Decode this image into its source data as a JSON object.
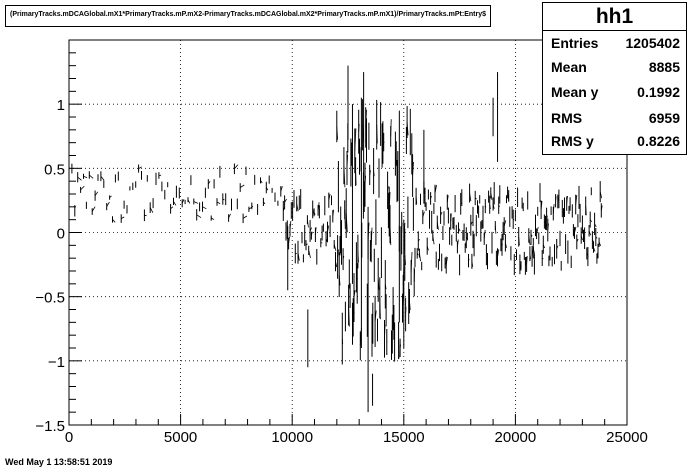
{
  "title_box": {
    "text": "(PrimaryTracks.mDCAGlobal.mX1*PrimaryTracks.mP.mX2-PrimaryTracks.mDCAGlobal.mX2*PrimaryTracks.mP.mX1)/PrimaryTracks.mPt:Entry$"
  },
  "stats": {
    "name": "hh1",
    "rows": [
      {
        "label": "Entries",
        "value": "1205402"
      },
      {
        "label": "Mean",
        "value": "8885"
      },
      {
        "label": "Mean y",
        "value": "0.1992"
      },
      {
        "label": "RMS",
        "value": "6959"
      },
      {
        "label": "RMS y",
        "value": "0.8226"
      }
    ]
  },
  "footer": {
    "timestamp": "Wed May  1 13:58:51 2019"
  },
  "chart_data": {
    "type": "scatter",
    "title": "(PrimaryTracks.mDCAGlobal.mX1*PrimaryTracks.mP.mX2-PrimaryTracks.mDCAGlobal.mX2*PrimaryTracks.mP.mX1)/PrimaryTracks.mPt:Entry$",
    "xlabel": "",
    "ylabel": "",
    "xlim": [
      0,
      25000
    ],
    "ylim": [
      -1.5,
      1.5
    ],
    "x_ticks": [
      0,
      5000,
      10000,
      15000,
      20000,
      25000
    ],
    "x_tick_labels": [
      "0",
      "5000",
      "10000",
      "15000",
      "20000",
      "25000"
    ],
    "y_ticks": [
      -1.5,
      -1,
      -0.5,
      0,
      0.5,
      1
    ],
    "y_tick_labels": [
      "−1.5",
      "−1",
      "−0.5",
      "0",
      "0.5",
      "1"
    ],
    "grid": true,
    "legend": "none",
    "colors": {
      "marker": "#000000",
      "frame": "#000000",
      "grid": "#000000"
    },
    "regions": [
      {
        "x_range": [
          0,
          9600
        ],
        "y_center": 0.3,
        "y_half_range": 0.2,
        "x_step": 130,
        "segment_length": 0.08
      },
      {
        "x_range": [
          9600,
          12000
        ],
        "y_center": 0.02,
        "y_half_range": 0.25,
        "x_step": 60,
        "segment_length": 0.15
      },
      {
        "x_range": [
          12000,
          15500
        ],
        "y_center": 0.0,
        "y_half_range": 0.9,
        "x_step": 35,
        "segment_length": 0.35
      },
      {
        "x_range": [
          15500,
          23900
        ],
        "y_center": 0.03,
        "y_half_range": 0.3,
        "x_step": 50,
        "segment_length": 0.15
      }
    ],
    "spikes": [
      {
        "x": 12500,
        "y1": 0.72,
        "y2": 1.3
      },
      {
        "x": 12700,
        "y1": -0.4,
        "y2": 1.0
      },
      {
        "x": 13100,
        "y1": -0.9,
        "y2": 1.05
      },
      {
        "x": 13200,
        "y1": 0.4,
        "y2": 1.25
      },
      {
        "x": 13400,
        "y1": -1.4,
        "y2": 0.2
      },
      {
        "x": 13600,
        "y1": -1.35,
        "y2": -1.1
      },
      {
        "x": 14800,
        "y1": -0.7,
        "y2": 0.95
      },
      {
        "x": 15000,
        "y1": -0.9,
        "y2": 0.1
      },
      {
        "x": 15900,
        "y1": 0.3,
        "y2": 0.8
      },
      {
        "x": 10700,
        "y1": -1.05,
        "y2": -0.6
      },
      {
        "x": 19000,
        "y1": 0.75,
        "y2": 1.05
      },
      {
        "x": 19200,
        "y1": 0.55,
        "y2": 1.25
      },
      {
        "x": 18100,
        "y1": 0.05,
        "y2": 0.2
      },
      {
        "x": 9800,
        "y1": -0.45,
        "y2": 0.05
      }
    ]
  }
}
